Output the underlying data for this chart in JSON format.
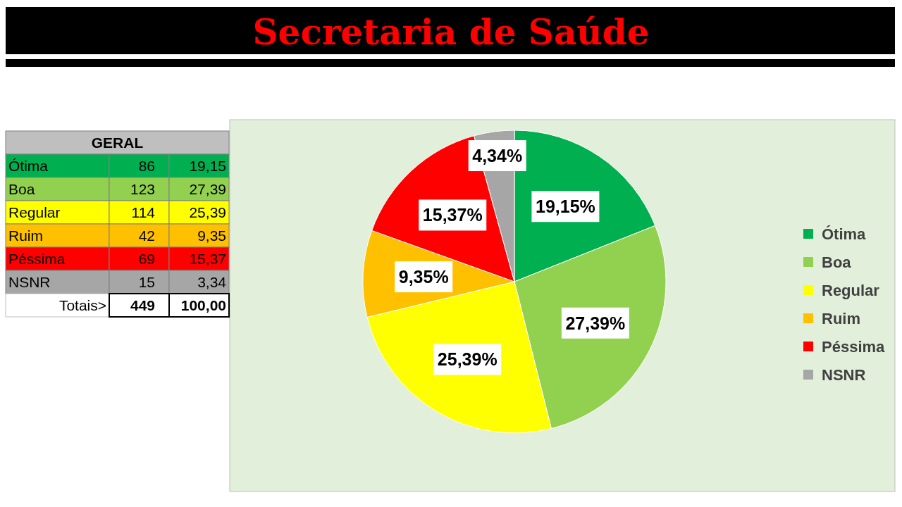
{
  "chart_data": {
    "type": "pie",
    "title": "Secretaria de Saúde",
    "categories": [
      "Ótima",
      "Boa",
      "Regular",
      "Ruim",
      "Péssima",
      "NSNR"
    ],
    "values": [
      19.15,
      27.39,
      25.39,
      9.35,
      15.37,
      4.34
    ],
    "colors": [
      "#00b050",
      "#92d050",
      "#ffff00",
      "#ffc000",
      "#ff0000",
      "#a6a6a6"
    ],
    "value_labels": [
      "19,15%",
      "27,39%",
      "25,39%",
      "9,35%",
      "15,37%",
      "4,34%"
    ],
    "annotations": [
      "GERAL",
      "86",
      "123",
      "114",
      "42",
      "69",
      "15",
      "19,15",
      "27,39",
      "25,39",
      "9,35",
      "15,37",
      "3,34",
      "Totais>",
      "449",
      "100,00"
    ],
    "legend": "right"
  }
}
